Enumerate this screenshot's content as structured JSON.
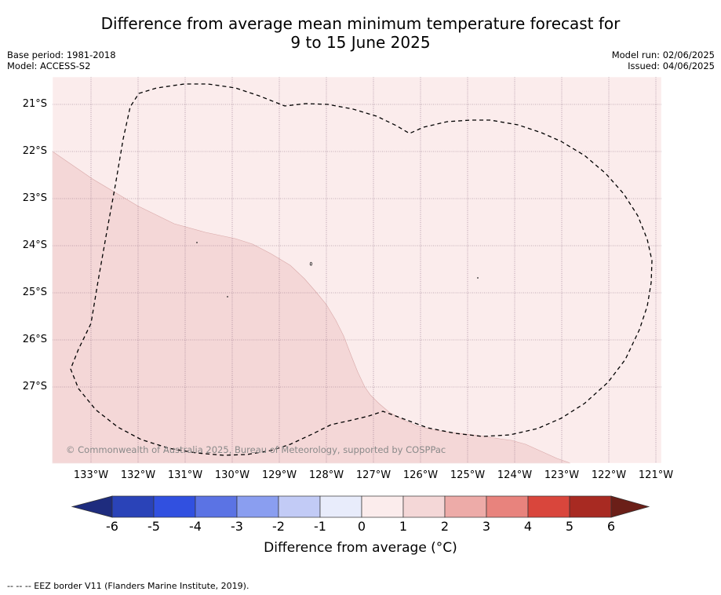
{
  "title": {
    "line1": "Difference from average mean minimum temperature forecast for",
    "line2": "9 to 15 June 2025"
  },
  "meta": {
    "base_period": "Base period: 1981-2018",
    "model": "Model: ACCESS-S2",
    "model_run": "Model run: 02/06/2025",
    "issued": "Issued: 04/06/2025"
  },
  "map": {
    "lat_ticks": [
      "21°S",
      "22°S",
      "23°S",
      "24°S",
      "25°S",
      "26°S",
      "27°S"
    ],
    "lon_ticks": [
      "133°W",
      "132°W",
      "131°W",
      "130°W",
      "129°W",
      "128°W",
      "127°W",
      "126°W",
      "125°W",
      "124°W",
      "123°W",
      "122°W",
      "121°W"
    ],
    "lat_range": [
      -28.6,
      -20.4
    ],
    "lon_range": [
      -133.8,
      -120.9
    ],
    "regions": [
      {
        "category": "0 to 1",
        "color": "#fbecec"
      },
      {
        "category": "1 to 2",
        "color": "#f4d7d7"
      }
    ],
    "copyright": "© Commonwealth of Australia 2025, Bureau of Meteorology, supported by COSPPac"
  },
  "colorbar": {
    "ticks": [
      "-6",
      "-5",
      "-4",
      "-3",
      "-2",
      "-1",
      "0",
      "1",
      "2",
      "3",
      "4",
      "5",
      "6"
    ],
    "colors": [
      "#1e2c7e",
      "#2a43b8",
      "#3150e0",
      "#5b73e4",
      "#8a9ef0",
      "#c2cbf6",
      "#e8ecfb",
      "#fbecec",
      "#f4d7d7",
      "#edaba8",
      "#e8837d",
      "#d9463c",
      "#a82a22",
      "#6b1f18"
    ],
    "label": "Difference from average ($^\\circ$C)",
    "label_display": "Difference from average (°C)"
  },
  "footnote": "--  --  -- EEZ border V11 (Flanders Marine Institute, 2019)."
}
